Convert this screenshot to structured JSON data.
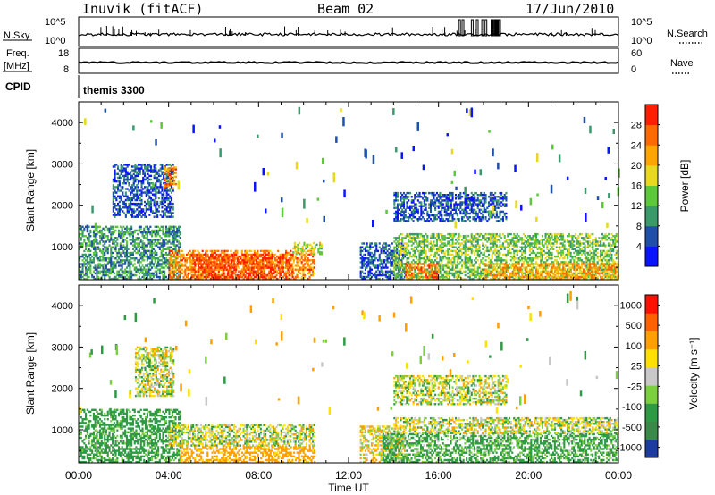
{
  "header": {
    "station": "Inuvik  (fitACF)",
    "beam": "Beam 02",
    "date": "17/Jun/2010"
  },
  "noise_panel": {
    "left_label": "N.Sky",
    "left_ticks": [
      "10^5",
      "10^0"
    ],
    "right_label": "N.Search",
    "right_ticks": [
      "10^5",
      "10^0"
    ]
  },
  "freq_panel": {
    "left_label_1": "Freq.",
    "left_label_2": "[MHz]",
    "left_ticks": [
      "18",
      "8"
    ],
    "right_label": "Nave",
    "right_ticks": [
      "60",
      "0"
    ]
  },
  "cpid_panel": {
    "label": "CPID",
    "value": "themis 3300"
  },
  "x_axis": {
    "label": "Time UT",
    "ticks": [
      "00:00",
      "04:00",
      "08:00",
      "12:00",
      "16:00",
      "20:00",
      "00:00"
    ]
  },
  "chart_data": [
    {
      "type": "heatmap",
      "title": "",
      "ylabel": "Slant Range [km]",
      "xlabel": "",
      "xlim": [
        0,
        24
      ],
      "ylim": [
        200,
        4500
      ],
      "yticks": [
        "1000",
        "2000",
        "3000",
        "4000"
      ],
      "colorbar_label": "Power [dB]",
      "colorbar_ticks": [
        "4",
        "8",
        "12",
        "16",
        "20",
        "24",
        "28"
      ],
      "colorbar_colors": [
        "#0a14ff",
        "#1f4fa8",
        "#3a9a6a",
        "#5cc83a",
        "#e8d820",
        "#ffa500",
        "#ff6a00",
        "#ff1e00"
      ],
      "regions": [
        {
          "t": [
            0.0,
            4.5
          ],
          "r": [
            200,
            1500
          ],
          "value": 10
        },
        {
          "t": [
            1.5,
            4.2
          ],
          "r": [
            1700,
            3000
          ],
          "value": 6
        },
        {
          "t": [
            3.8,
            4.3
          ],
          "r": [
            2400,
            2900
          ],
          "value": 24
        },
        {
          "t": [
            4.0,
            10.5
          ],
          "r": [
            200,
            900
          ],
          "value": 24
        },
        {
          "t": [
            5.0,
            9.5
          ],
          "r": [
            200,
            800
          ],
          "value": 28
        },
        {
          "t": [
            9.5,
            10.8
          ],
          "r": [
            800,
            1100
          ],
          "value": 16
        },
        {
          "t": [
            12.5,
            14.5
          ],
          "r": [
            200,
            1100
          ],
          "value": 6
        },
        {
          "t": [
            14.0,
            19.0
          ],
          "r": [
            1600,
            2300
          ],
          "value": 6
        },
        {
          "t": [
            14.0,
            24.0
          ],
          "r": [
            200,
            1300
          ],
          "value": 14
        },
        {
          "t": [
            14.5,
            16.0
          ],
          "r": [
            200,
            600
          ],
          "value": 26
        },
        {
          "t": [
            18.0,
            24.0
          ],
          "r": [
            200,
            600
          ],
          "value": 22
        }
      ]
    },
    {
      "type": "heatmap",
      "title": "",
      "ylabel": "Slant Range [km]",
      "xlabel": "Time UT",
      "xlim": [
        0,
        24
      ],
      "ylim": [
        200,
        4500
      ],
      "yticks": [
        "1000",
        "2000",
        "3000",
        "4000"
      ],
      "colorbar_label": "Velocity  [m s⁻¹]",
      "colorbar_ticks": [
        "1000",
        "500",
        "100",
        "25",
        "-25",
        "-100",
        "-500",
        "-1000"
      ],
      "colorbar_colors": [
        "#1e3ca0",
        "#3a8a4a",
        "#2e9a44",
        "#7cd040",
        "#c8c8c8",
        "#ffe000",
        "#ff9f00",
        "#ff6000",
        "#ff1000"
      ],
      "regions": [
        {
          "t": [
            0.0,
            4.5
          ],
          "r": [
            200,
            1500
          ],
          "value": -200
        },
        {
          "t": [
            2.5,
            4.2
          ],
          "r": [
            1800,
            3000
          ],
          "value": 0
        },
        {
          "t": [
            4.0,
            10.5
          ],
          "r": [
            600,
            1100
          ],
          "value": 0
        },
        {
          "t": [
            4.5,
            10.5
          ],
          "r": [
            200,
            600
          ],
          "value": 200
        },
        {
          "t": [
            12.5,
            14.5
          ],
          "r": [
            200,
            1100
          ],
          "value": 50
        },
        {
          "t": [
            14.0,
            19.0
          ],
          "r": [
            1600,
            2300
          ],
          "value": 0
        },
        {
          "t": [
            13.5,
            24.0
          ],
          "r": [
            200,
            900
          ],
          "value": -150
        },
        {
          "t": [
            14.0,
            24.0
          ],
          "r": [
            900,
            1300
          ],
          "value": 0
        }
      ]
    }
  ]
}
